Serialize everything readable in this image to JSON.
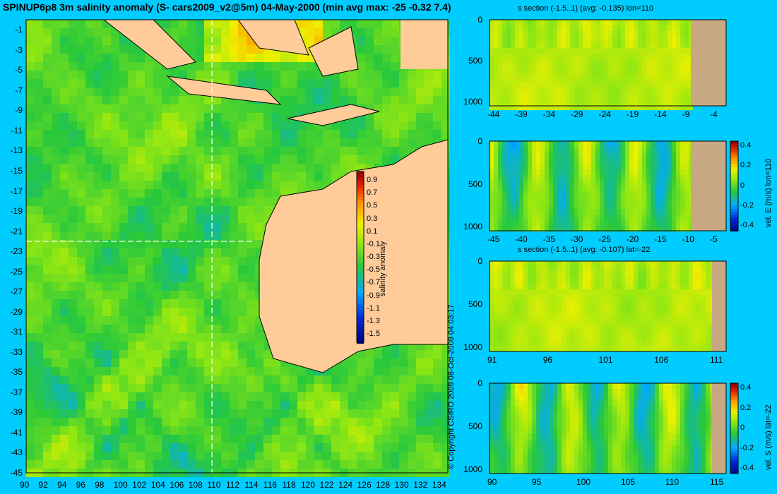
{
  "title": "SPINUP6p8 3m salinity anomaly (S- cars2009_v2@5m) 04-May-2000 (min avg max: -25 -0.32 7.4)",
  "copyright": "© Copyright CSIRO 2009  08-Oct-2009 04:03:17",
  "colors": {
    "background": "#00ccff",
    "land": "#ffcc99",
    "section_land": "#c8a882"
  },
  "chart_data": [
    {
      "type": "heatmap",
      "title": "SPINUP6p8 3m salinity anomaly (S- cars2009_v2@5m) 04-May-2000 (min avg max: -25 -0.32 7.4)",
      "xticks": [
        "90",
        "92",
        "94",
        "96",
        "98",
        "100",
        "102",
        "104",
        "106",
        "108",
        "110",
        "112",
        "114",
        "116",
        "118",
        "120",
        "122",
        "124",
        "126",
        "128",
        "130",
        "132",
        "134"
      ],
      "yticks": [
        "-1",
        "-3",
        "-5",
        "-7",
        "-9",
        "-11",
        "-13",
        "-15",
        "-17",
        "-19",
        "-21",
        "-23",
        "-25",
        "-27",
        "-29",
        "-31",
        "-33",
        "-35",
        "-37",
        "-39",
        "-41",
        "-43",
        "-45"
      ],
      "xlim": [
        90,
        135
      ],
      "ylim": [
        -45,
        0
      ],
      "section_lines": {
        "lon": 110,
        "lat": -22
      },
      "colorbar": {
        "label": "salinity anomaly",
        "ticks": [
          "0.9",
          "0.7",
          "0.5",
          "0.3",
          "0.1",
          "-0.1",
          "-0.3",
          "-0.5",
          "-0.7",
          "-0.9",
          "-1.1",
          "-1.3",
          "-1.5"
        ],
        "range": [
          -1.5,
          1.0
        ]
      }
    },
    {
      "type": "heatmap",
      "title": "s section (-1.5..1) (avg: -0.135) lon=110",
      "xticks": [
        "-44",
        "-39",
        "-34",
        "-29",
        "-24",
        "-19",
        "-14",
        "-9",
        "-4"
      ],
      "yticks": [
        "0",
        "500",
        "1000"
      ]
    },
    {
      "type": "heatmap",
      "title": "",
      "xticks": [
        "-45",
        "-40",
        "-35",
        "-30",
        "-25",
        "-20",
        "-15",
        "-10",
        "-5"
      ],
      "yticks": [
        "0",
        "500",
        "1000"
      ],
      "colorbar": {
        "label": "vel. E (m/s) lon=110",
        "ticks": [
          "0.4",
          "0.2",
          "0",
          "-0.2",
          "-0.4"
        ]
      }
    },
    {
      "type": "heatmap",
      "title": "s section (-1.5..1) (avg: -0.107) lat=-22",
      "xticks": [
        "91",
        "96",
        "101",
        "106",
        "111"
      ],
      "yticks": [
        "0",
        "500",
        "1000"
      ]
    },
    {
      "type": "heatmap",
      "title": "",
      "xticks": [
        "90",
        "95",
        "100",
        "105",
        "110",
        "115"
      ],
      "yticks": [
        "0",
        "500",
        "1000"
      ],
      "colorbar": {
        "label": "vel. S (m/s) lat=-22",
        "ticks": [
          "0.4",
          "0.2",
          "0",
          "-0.2",
          "-0.4"
        ]
      }
    }
  ]
}
